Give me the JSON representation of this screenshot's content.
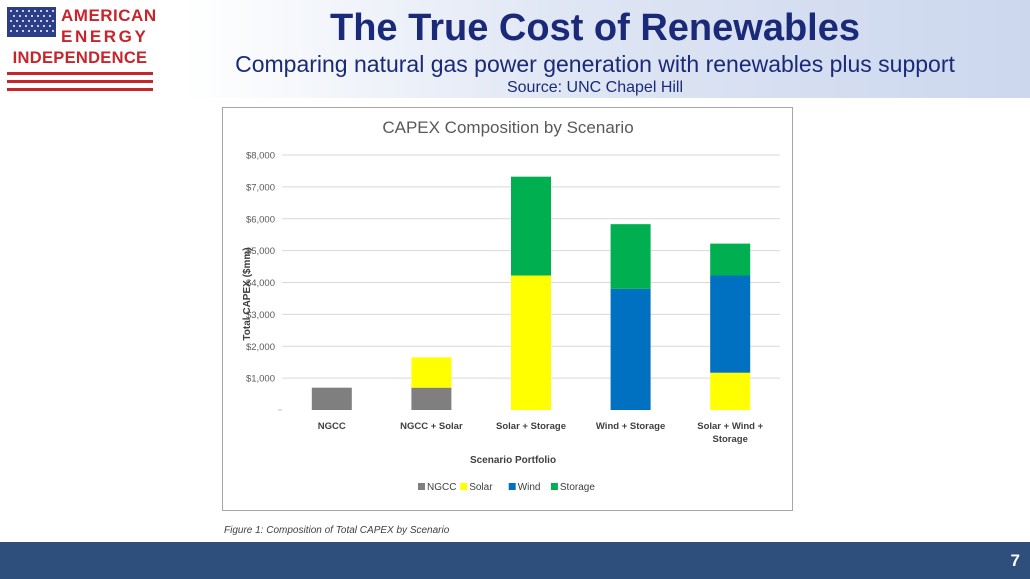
{
  "logo": {
    "line1": "AMERICAN",
    "line2": "ENERGY",
    "line3": "INDEPENDENCE",
    "colors": {
      "red": "#c8242c",
      "blue": "#2c3e87"
    }
  },
  "header": {
    "title": "The True Cost of Renewables",
    "subtitle": "Comparing natural gas power generation with renewables plus support",
    "source": "Source: UNC Chapel Hill"
  },
  "chart_data": {
    "type": "bar",
    "stacked": true,
    "title": "CAPEX Composition by Scenario",
    "xlabel": "Scenario Portfolio",
    "ylabel": "Total CAPEX ($mm)",
    "ylim": [
      0,
      8000
    ],
    "yticks": [
      "$1,000",
      "$2,000",
      "$3,000",
      "$4,000",
      "$5,000",
      "$6,000",
      "$7,000",
      "$8,000"
    ],
    "categories": [
      [
        "NGCC"
      ],
      [
        "NGCC + Solar"
      ],
      [
        "Solar + Storage"
      ],
      [
        "Wind + Storage"
      ],
      [
        "Solar + Wind +",
        "Storage"
      ]
    ],
    "series": [
      {
        "name": "NGCC",
        "color": "#7f7f7f",
        "values": [
          700,
          700,
          0,
          0,
          0
        ]
      },
      {
        "name": "Solar",
        "color": "#ffff00",
        "values": [
          0,
          950,
          4220,
          0,
          1170
        ]
      },
      {
        "name": "Wind",
        "color": "#0070c0",
        "values": [
          0,
          0,
          0,
          3800,
          3050
        ]
      },
      {
        "name": "Storage",
        "color": "#00b050",
        "values": [
          0,
          0,
          3100,
          2030,
          1000
        ]
      }
    ],
    "grid": true,
    "legend": "bottom"
  },
  "caption": "Figure 1: Composition of Total CAPEX by Scenario",
  "footer": {
    "page_number": "7"
  }
}
